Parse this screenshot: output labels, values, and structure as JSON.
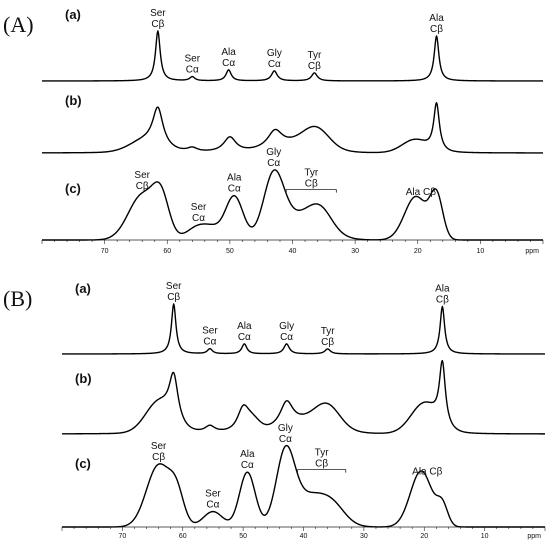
{
  "chart_data": [
    {
      "type": "line",
      "panel_label": "(A)",
      "x_unit": "ppm",
      "x_ticks": [
        "70",
        "60",
        "50",
        "40",
        "30",
        "20",
        "10"
      ],
      "xlim": [
        80,
        0
      ],
      "traces": [
        {
          "name": "(a)",
          "peaks": [
            {
              "x": 61.5,
              "h": 1.0,
              "w": 0.45,
              "shape": "lorentzian"
            },
            {
              "x": 56.0,
              "h": 0.08,
              "w": 0.5,
              "shape": "lorentzian"
            },
            {
              "x": 50.2,
              "h": 0.22,
              "w": 0.5,
              "shape": "lorentzian"
            },
            {
              "x": 42.9,
              "h": 0.2,
              "w": 0.55,
              "shape": "lorentzian"
            },
            {
              "x": 36.5,
              "h": 0.16,
              "w": 0.55,
              "shape": "lorentzian"
            },
            {
              "x": 17.0,
              "h": 0.9,
              "w": 0.45,
              "shape": "lorentzian"
            }
          ],
          "annotations": [
            {
              "lines": [
                "Ser",
                "Cβ"
              ],
              "x": 61.5
            },
            {
              "lines": [
                "Ser",
                "Cα"
              ],
              "x": 56.0
            },
            {
              "lines": [
                "Ala",
                "Cα"
              ],
              "x": 50.2
            },
            {
              "lines": [
                "Gly",
                "Cα"
              ],
              "x": 42.9
            },
            {
              "lines": [
                "Tyr",
                "Cβ"
              ],
              "x": 36.5
            },
            {
              "lines": [
                "Ala",
                "Cβ"
              ],
              "x": 17.0
            }
          ]
        },
        {
          "name": "(b)",
          "peaks": [
            {
              "x": 61.5,
              "h": 0.75,
              "w": 1.0,
              "shape": "lorentzian"
            },
            {
              "x": 63.5,
              "h": 0.22,
              "w": 2.5,
              "shape": "gaussian"
            },
            {
              "x": 56.0,
              "h": 0.08,
              "w": 1.0,
              "shape": "lorentzian"
            },
            {
              "x": 50.0,
              "h": 0.3,
              "w": 1.2,
              "shape": "lorentzian"
            },
            {
              "x": 42.8,
              "h": 0.33,
              "w": 1.4,
              "shape": "lorentzian"
            },
            {
              "x": 39.0,
              "h": 0.2,
              "w": 4.0,
              "shape": "gaussian"
            },
            {
              "x": 36.2,
              "h": 0.35,
              "w": 2.0,
              "shape": "gaussian"
            },
            {
              "x": 20.5,
              "h": 0.25,
              "w": 2.0,
              "shape": "gaussian"
            },
            {
              "x": 17.0,
              "h": 0.95,
              "w": 0.55,
              "shape": "lorentzian"
            }
          ],
          "annotations": []
        },
        {
          "name": "(c)",
          "peaks": [
            {
              "x": 64.0,
              "h": 0.72,
              "w": 2.2,
              "shape": "gaussian"
            },
            {
              "x": 61.0,
              "h": 0.6,
              "w": 1.3,
              "shape": "gaussian"
            },
            {
              "x": 55.0,
              "h": 0.22,
              "w": 1.8,
              "shape": "gaussian"
            },
            {
              "x": 52.5,
              "h": 0.12,
              "w": 1.4,
              "shape": "gaussian"
            },
            {
              "x": 49.3,
              "h": 0.7,
              "w": 1.4,
              "shape": "gaussian"
            },
            {
              "x": 43.0,
              "h": 0.95,
              "w": 1.6,
              "shape": "gaussian"
            },
            {
              "x": 38.5,
              "h": 0.4,
              "w": 3.5,
              "shape": "gaussian"
            },
            {
              "x": 35.5,
              "h": 0.28,
              "w": 1.8,
              "shape": "gaussian"
            },
            {
              "x": 20.3,
              "h": 0.7,
              "w": 1.8,
              "shape": "gaussian"
            },
            {
              "x": 17.0,
              "h": 0.68,
              "w": 1.0,
              "shape": "gaussian"
            }
          ],
          "annotations": [
            {
              "lines": [
                "Ser",
                "Cβ"
              ],
              "x": 64.0
            },
            {
              "lines": [
                "Ser",
                "Cα"
              ],
              "x": 55.0
            },
            {
              "lines": [
                "Ala",
                "Cα"
              ],
              "x": 49.3
            },
            {
              "lines": [
                "Gly",
                "Cα"
              ],
              "x": 43.0
            },
            {
              "lines": [
                "Tyr",
                "Cβ"
              ],
              "x": 37.0,
              "bracket": [
                41.0,
                33.0
              ]
            },
            {
              "lines": [
                "Ala Cβ"
              ],
              "x": 19.5
            }
          ]
        }
      ]
    },
    {
      "type": "line",
      "panel_label": "(B)",
      "x_unit": "ppm",
      "x_ticks": [
        "70",
        "60",
        "50",
        "40",
        "30",
        "20",
        "10"
      ],
      "xlim": [
        80,
        0
      ],
      "traces": [
        {
          "name": "(a)",
          "peaks": [
            {
              "x": 61.5,
              "h": 1.0,
              "w": 0.45,
              "shape": "lorentzian"
            },
            {
              "x": 55.5,
              "h": 0.1,
              "w": 0.5,
              "shape": "lorentzian"
            },
            {
              "x": 49.8,
              "h": 0.2,
              "w": 0.5,
              "shape": "lorentzian"
            },
            {
              "x": 42.8,
              "h": 0.2,
              "w": 0.55,
              "shape": "lorentzian"
            },
            {
              "x": 36.0,
              "h": 0.1,
              "w": 0.55,
              "shape": "lorentzian"
            },
            {
              "x": 17.0,
              "h": 0.95,
              "w": 0.45,
              "shape": "lorentzian"
            }
          ],
          "annotations": [
            {
              "lines": [
                "Ser",
                "Cβ"
              ],
              "x": 61.5
            },
            {
              "lines": [
                "Ser",
                "Cα"
              ],
              "x": 55.5
            },
            {
              "lines": [
                "Ala",
                "Cα"
              ],
              "x": 49.8
            },
            {
              "lines": [
                "Gly",
                "Cα"
              ],
              "x": 42.8
            },
            {
              "lines": [
                "Tyr",
                "Cβ"
              ],
              "x": 36.0
            },
            {
              "lines": [
                "Ala",
                "Cβ"
              ],
              "x": 17.0
            }
          ]
        },
        {
          "name": "(b)",
          "peaks": [
            {
              "x": 64.0,
              "h": 0.45,
              "w": 2.2,
              "shape": "gaussian"
            },
            {
              "x": 61.5,
              "h": 0.7,
              "w": 0.9,
              "shape": "lorentzian"
            },
            {
              "x": 55.5,
              "h": 0.1,
              "w": 1.0,
              "shape": "lorentzian"
            },
            {
              "x": 50.0,
              "h": 0.35,
              "w": 1.2,
              "shape": "lorentzian"
            },
            {
              "x": 48.5,
              "h": 0.15,
              "w": 1.2,
              "shape": "gaussian"
            },
            {
              "x": 42.8,
              "h": 0.37,
              "w": 1.3,
              "shape": "lorentzian"
            },
            {
              "x": 39.0,
              "h": 0.2,
              "w": 4.0,
              "shape": "gaussian"
            },
            {
              "x": 36.0,
              "h": 0.3,
              "w": 2.0,
              "shape": "gaussian"
            },
            {
              "x": 20.0,
              "h": 0.45,
              "w": 2.2,
              "shape": "gaussian"
            },
            {
              "x": 17.0,
              "h": 0.95,
              "w": 0.6,
              "shape": "lorentzian"
            }
          ],
          "annotations": []
        },
        {
          "name": "(c)",
          "peaks": [
            {
              "x": 64.0,
              "h": 0.88,
              "w": 2.0,
              "shape": "gaussian"
            },
            {
              "x": 61.0,
              "h": 0.4,
              "w": 1.2,
              "shape": "gaussian"
            },
            {
              "x": 55.0,
              "h": 0.22,
              "w": 1.6,
              "shape": "gaussian"
            },
            {
              "x": 49.3,
              "h": 0.78,
              "w": 1.3,
              "shape": "gaussian"
            },
            {
              "x": 43.0,
              "h": 0.95,
              "w": 1.5,
              "shape": "gaussian"
            },
            {
              "x": 39.0,
              "h": 0.45,
              "w": 3.2,
              "shape": "gaussian"
            },
            {
              "x": 35.0,
              "h": 0.18,
              "w": 2.0,
              "shape": "gaussian"
            },
            {
              "x": 20.5,
              "h": 0.8,
              "w": 1.8,
              "shape": "gaussian"
            },
            {
              "x": 17.0,
              "h": 0.28,
              "w": 0.9,
              "shape": "gaussian"
            }
          ],
          "annotations": [
            {
              "lines": [
                "Ser",
                "Cβ"
              ],
              "x": 64.0
            },
            {
              "lines": [
                "Ser",
                "Cα"
              ],
              "x": 55.0
            },
            {
              "lines": [
                "Ala",
                "Cα"
              ],
              "x": 49.3
            },
            {
              "lines": [
                "Gly",
                "Cα"
              ],
              "x": 43.0
            },
            {
              "lines": [
                "Tyr",
                "Cβ"
              ],
              "x": 37.0,
              "bracket": [
                41.0,
                33.0
              ]
            },
            {
              "lines": [
                "Ala Cβ"
              ],
              "x": 19.5
            }
          ]
        }
      ]
    }
  ]
}
